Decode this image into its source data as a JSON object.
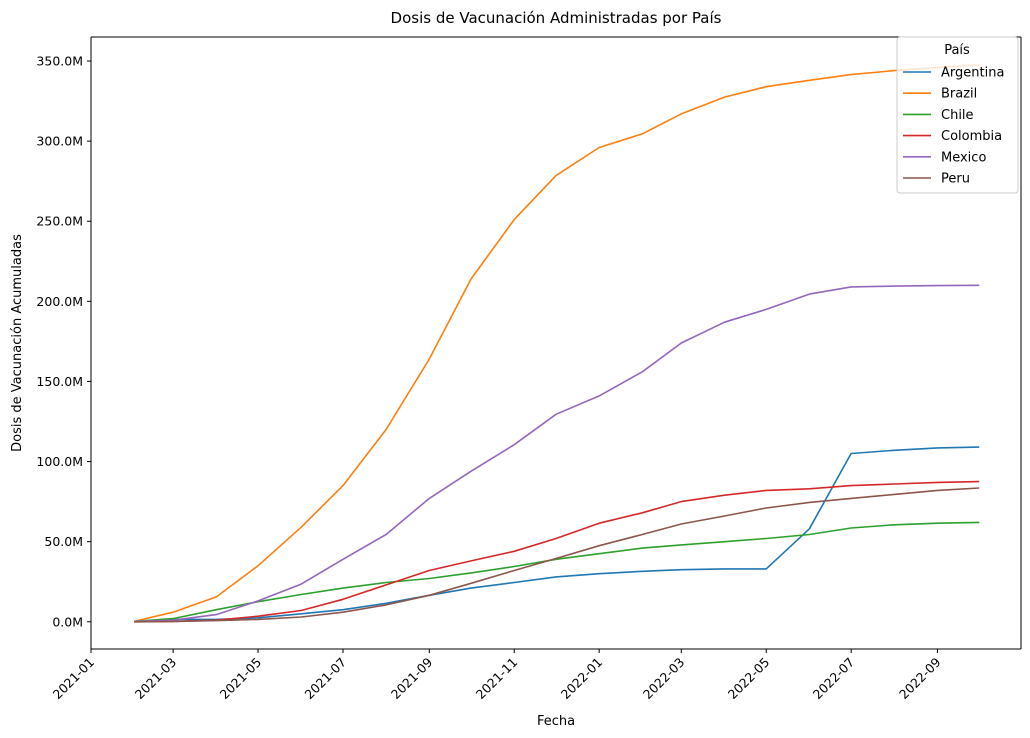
{
  "chart_data": {
    "type": "line",
    "title": "Dosis de Vacunación Administradas por País",
    "xlabel": "Fecha",
    "ylabel": "Dosis de Vacunación Acumuladas",
    "x_tick_labels": [
      "2021-01",
      "2021-03",
      "2021-05",
      "2021-07",
      "2021-09",
      "2021-11",
      "2022-01",
      "2022-03",
      "2022-05",
      "2022-07",
      "2022-09"
    ],
    "y_ticks": [
      0,
      50,
      100,
      150,
      200,
      250,
      300,
      350
    ],
    "y_tick_labels": [
      "0.0M",
      "50.0M",
      "100.0M",
      "150.0M",
      "200.0M",
      "250.0M",
      "300.0M",
      "350.0M"
    ],
    "y_unit": "millions of doses",
    "xlim": [
      "2021-01-01",
      "2022-10-31"
    ],
    "ylim": [
      -17,
      365
    ],
    "grid": false,
    "legend": {
      "title": "País",
      "placement": "top-right"
    },
    "x": [
      "2021-02-01",
      "2021-03-01",
      "2021-04-01",
      "2021-05-01",
      "2021-06-01",
      "2021-07-01",
      "2021-08-01",
      "2021-09-01",
      "2021-10-01",
      "2021-11-01",
      "2021-12-01",
      "2022-01-01",
      "2022-02-01",
      "2022-03-01",
      "2022-04-01",
      "2022-05-01",
      "2022-06-01",
      "2022-07-01",
      "2022-08-01",
      "2022-09-01",
      "2022-10-01"
    ],
    "series": [
      {
        "name": "Argentina",
        "color": "#1f77b4",
        "values": [
          0.2,
          1.5,
          1.5,
          2.5,
          5,
          7.5,
          11.5,
          16.5,
          21,
          24.5,
          28,
          30,
          31.5,
          32.5,
          33,
          33,
          58,
          105,
          107,
          108.5,
          109
        ]
      },
      {
        "name": "Brazil",
        "color": "#ff7f0e",
        "values": [
          0.2,
          6,
          15.5,
          35,
          59,
          85,
          120,
          164,
          214,
          251,
          278.5,
          296,
          304.5,
          317,
          327.5,
          334,
          338,
          341.5,
          344,
          346,
          347.5
        ]
      },
      {
        "name": "Chile",
        "color": "#2ca02c",
        "values": [
          0.2,
          2,
          7.5,
          12.5,
          17,
          21,
          24.5,
          27,
          30.5,
          34.5,
          39,
          42.5,
          46,
          48,
          50,
          52,
          54.5,
          58.5,
          60.5,
          61.5,
          62
        ]
      },
      {
        "name": "Colombia",
        "color": "#d62728",
        "values": [
          0,
          0.2,
          1,
          3.5,
          7,
          14,
          23,
          32,
          38,
          44,
          52,
          61.5,
          68,
          75,
          79,
          82,
          83,
          85,
          86,
          87,
          87.5
        ]
      },
      {
        "name": "Mexico",
        "color": "#9467bd",
        "values": [
          0.2,
          1,
          4.5,
          13,
          23.5,
          39,
          54.5,
          77,
          94,
          110.5,
          129.5,
          141,
          156,
          174,
          187,
          195,
          204.5,
          209,
          209.5,
          209.8,
          210
        ]
      },
      {
        "name": "Peru",
        "color": "#8c564b",
        "values": [
          0,
          0.2,
          0.7,
          1.5,
          3,
          6,
          10.5,
          16.5,
          24,
          32,
          39.5,
          47.5,
          54.5,
          61,
          66,
          71,
          74.5,
          77,
          79.5,
          82,
          83.5
        ]
      }
    ]
  }
}
